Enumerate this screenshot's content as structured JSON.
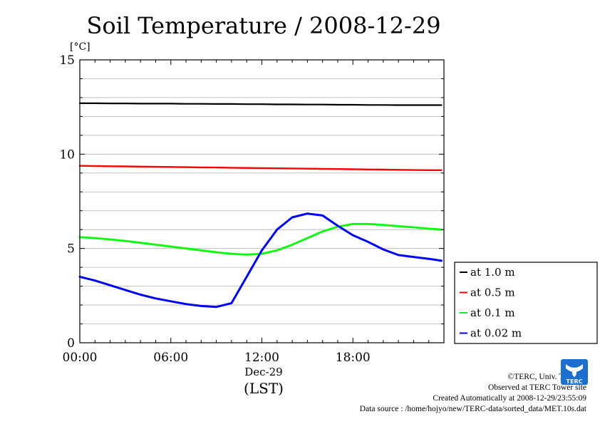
{
  "chart_data": {
    "type": "line",
    "title": "Soil Temperature / 2008-12-29",
    "ylabel": "[°C]",
    "xlabel": "(LST)",
    "x_date_label": "Dec-29",
    "ylim": [
      0,
      15
    ],
    "yticks": [
      0,
      5,
      10,
      15
    ],
    "xlim": [
      "00:00",
      "24:00"
    ],
    "xticks": [
      "00:00",
      "06:00",
      "12:00",
      "18:00"
    ],
    "grid": "horizontal every 1 °C",
    "legend_position": "right",
    "x": [
      "00:00",
      "01:00",
      "02:00",
      "03:00",
      "04:00",
      "05:00",
      "06:00",
      "07:00",
      "08:00",
      "09:00",
      "10:00",
      "11:00",
      "12:00",
      "13:00",
      "14:00",
      "15:00",
      "16:00",
      "17:00",
      "18:00",
      "19:00",
      "20:00",
      "21:00",
      "22:00",
      "23:00",
      "23:50"
    ],
    "series": [
      {
        "name": "at 1.0 m",
        "color": "#000000",
        "width": 2.2,
        "values": [
          12.7,
          12.7,
          12.69,
          12.69,
          12.68,
          12.68,
          12.68,
          12.67,
          12.67,
          12.66,
          12.66,
          12.65,
          12.65,
          12.64,
          12.64,
          12.63,
          12.63,
          12.62,
          12.62,
          12.61,
          12.61,
          12.6,
          12.6,
          12.6,
          12.6
        ]
      },
      {
        "name": "at 0.5 m",
        "color": "#ff0000",
        "width": 2.4,
        "values": [
          9.38,
          9.37,
          9.36,
          9.35,
          9.34,
          9.33,
          9.32,
          9.31,
          9.3,
          9.29,
          9.28,
          9.27,
          9.26,
          9.25,
          9.24,
          9.23,
          9.22,
          9.21,
          9.2,
          9.19,
          9.18,
          9.17,
          9.16,
          9.15,
          9.15
        ]
      },
      {
        "name": "at 0.1 m",
        "color": "#00ff00",
        "width": 2.8,
        "values": [
          5.6,
          5.55,
          5.48,
          5.4,
          5.3,
          5.2,
          5.1,
          5.0,
          4.9,
          4.8,
          4.72,
          4.67,
          4.72,
          4.9,
          5.2,
          5.55,
          5.9,
          6.15,
          6.3,
          6.3,
          6.25,
          6.18,
          6.12,
          6.05,
          6.0
        ]
      },
      {
        "name": "at 0.02 m",
        "color": "#0000ff",
        "width": 3.0,
        "values": [
          3.5,
          3.3,
          3.05,
          2.8,
          2.55,
          2.35,
          2.2,
          2.05,
          1.95,
          1.9,
          2.1,
          3.5,
          4.9,
          6.0,
          6.65,
          6.85,
          6.75,
          6.2,
          5.7,
          5.35,
          4.95,
          4.65,
          4.55,
          4.45,
          4.35
        ]
      }
    ]
  },
  "credits": {
    "copyright": "©TERC, Univ. Tsukuba",
    "site": "Observed at TERC Tower site",
    "created": "Created Automatically at 2008-12-29/23:55:09",
    "source": "Data source : /home/hojyo/new/TERC-data/sorted_data/MET.10s.dat"
  },
  "logo": {
    "label": "TERC",
    "color": "#1a6fd0"
  }
}
